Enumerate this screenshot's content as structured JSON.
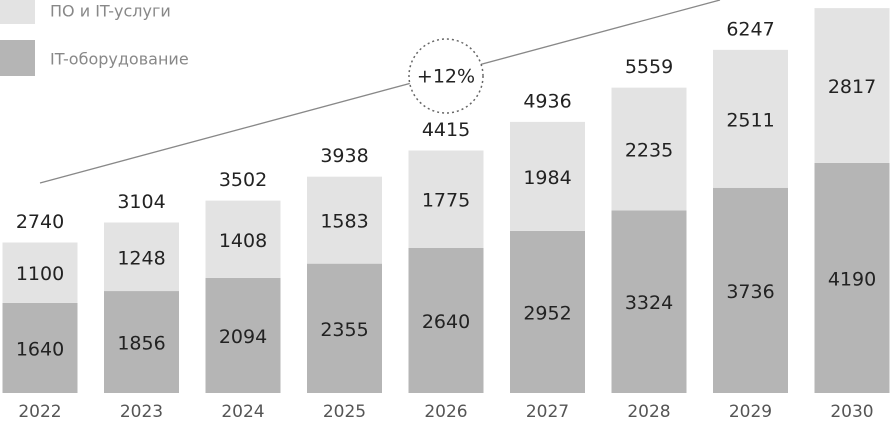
{
  "chart_data": {
    "type": "stacked_bar",
    "categories": [
      "2022",
      "2023",
      "2024",
      "2025",
      "2026",
      "2027",
      "2028",
      "2029",
      "2030"
    ],
    "series": [
      {
        "name": "IT-оборудование",
        "color": "#b5b5b5",
        "values": [
          1640,
          1856,
          2094,
          2355,
          2640,
          2952,
          3324,
          3736,
          4190
        ]
      },
      {
        "name": "ПО и IT-услуги",
        "color": "#e3e3e3",
        "values": [
          1100,
          1248,
          1408,
          1583,
          1775,
          1984,
          2235,
          2511,
          2817
        ]
      }
    ],
    "totals": [
      2740,
      3104,
      3502,
      3938,
      4415,
      4936,
      5559,
      6247,
      null
    ],
    "annotation": "+12%",
    "ylim": [
      0,
      7100
    ]
  }
}
